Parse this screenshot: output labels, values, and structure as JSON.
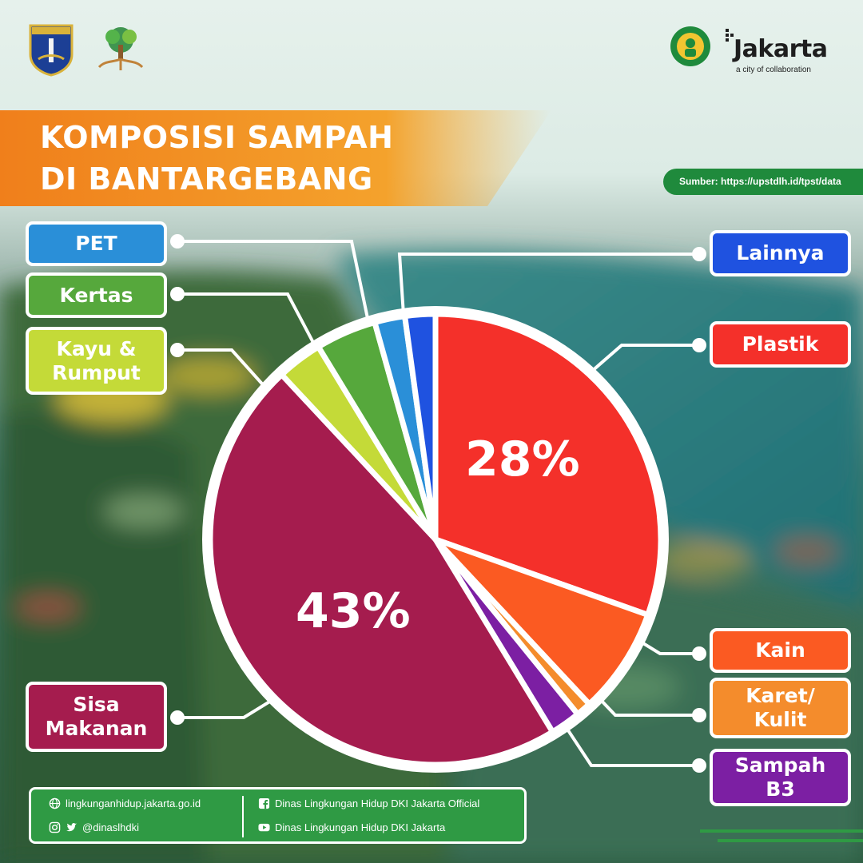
{
  "title": {
    "line1": "KOMPOSISI SAMPAH",
    "line2": "DI BANTARGEBANG"
  },
  "source": "Sumber: https://upstdlh.id/tpst/data",
  "header": {
    "brand": "Jakarta",
    "tagline": "a city of collaboration"
  },
  "chart_data": {
    "type": "pie",
    "title": "KOMPOSISI SAMPAH DI BANTARGEBANG",
    "start": "12 o'clock",
    "direction": "clockwise",
    "slices": [
      {
        "name": "Plastik",
        "value": 28,
        "label": "28%",
        "color": "#f4302a"
      },
      {
        "name": "Kain",
        "value": 7,
        "color": "#fb5a22"
      },
      {
        "name": "Karet/ Kulit",
        "value": 1,
        "color": "#f48c2c"
      },
      {
        "name": "Sampah B3",
        "value": 2,
        "color": "#7c1fa3"
      },
      {
        "name": "Sisa Makanan",
        "value": 43,
        "label": "43%",
        "color": "#a51c4e"
      },
      {
        "name": "Kayu & Rumput",
        "value": 3,
        "color": "#c4da38"
      },
      {
        "name": "Kertas",
        "value": 4,
        "color": "#56a83c"
      },
      {
        "name": "PET",
        "value": 2,
        "color": "#2a8fd8"
      },
      {
        "name": "Lainnya",
        "value": 2,
        "color": "#1f52e0"
      }
    ]
  },
  "labels": {
    "pet": {
      "text": "PET",
      "color": "#2a8fd8"
    },
    "kertas": {
      "text": "Kertas",
      "color": "#56a83c"
    },
    "kayu": {
      "text": "Kayu &\nRumput",
      "color": "#c4da38"
    },
    "sisa": {
      "text": "Sisa\nMakanan",
      "color": "#a51c4e"
    },
    "lainnya": {
      "text": "Lainnya",
      "color": "#1f52e0"
    },
    "plastik": {
      "text": "Plastik",
      "color": "#f4302a"
    },
    "kain": {
      "text": "Kain",
      "color": "#fb5a22"
    },
    "karet": {
      "text": "Karet/\nKulit",
      "color": "#f48c2c"
    },
    "b3": {
      "text": "Sampah\nB3",
      "color": "#7c1fa3"
    }
  },
  "footer": {
    "website": "lingkunganhidup.jakarta.go.id",
    "social": "@dinaslhdki",
    "facebook": "Dinas Lingkungan Hidup DKI Jakarta Official",
    "youtube": "Dinas Lingkungan Hidup DKI Jakarta"
  }
}
